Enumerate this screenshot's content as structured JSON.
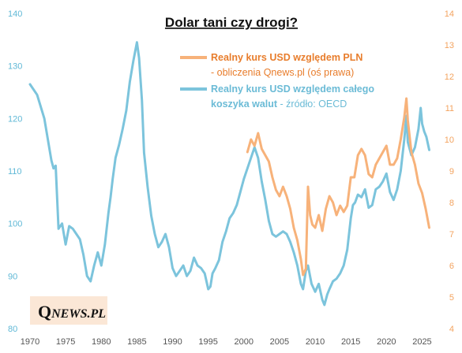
{
  "chart_data": {
    "type": "line",
    "title": "Dolar tani czy drogi?",
    "xlabel": "",
    "ylabel": "",
    "xlim": [
      1970,
      2026.5
    ],
    "ylim_left": [
      80,
      140
    ],
    "ylim_right": [
      4,
      14
    ],
    "x_ticks": [
      1970,
      1975,
      1980,
      1985,
      1990,
      1995,
      2000,
      2005,
      2010,
      2015,
      2020,
      2025
    ],
    "y_left_ticks": [
      80,
      90,
      100,
      110,
      120,
      130,
      140
    ],
    "y_right_ticks": [
      4,
      5,
      6,
      7,
      8,
      9,
      10,
      11,
      12,
      13,
      14
    ],
    "grid": false,
    "legend_position": "top-right",
    "legend": [
      {
        "line1": "Realny kurs USD względem PLN",
        "line2_main": "- obliczenia Qnews.pl (oś prawa)",
        "line2_tail": "",
        "color": "#f7b27a"
      },
      {
        "line1": "Realny kurs USD względem całego",
        "line2_main": "koszyka walut",
        "line2_tail": " - źródło: OECD",
        "color": "#7cc4dc"
      }
    ],
    "series": [
      {
        "name": "Realny kurs USD względem całego koszyka walut",
        "axis": "left",
        "color": "#7cc4dc",
        "x": [
          1970.0,
          1971.0,
          1972.0,
          1972.5,
          1973.0,
          1973.3,
          1973.6,
          1974.0,
          1974.5,
          1975.0,
          1975.5,
          1976.0,
          1976.5,
          1977.0,
          1977.5,
          1978.0,
          1978.5,
          1979.0,
          1979.5,
          1980.0,
          1980.5,
          1981.0,
          1981.3,
          1981.6,
          1982.0,
          1982.5,
          1983.0,
          1983.5,
          1984.0,
          1984.5,
          1985.0,
          1985.3,
          1985.7,
          1986.0,
          1986.5,
          1987.0,
          1987.5,
          1988.0,
          1988.5,
          1989.0,
          1989.5,
          1990.0,
          1990.5,
          1991.0,
          1991.5,
          1992.0,
          1992.5,
          1993.0,
          1993.5,
          1994.0,
          1994.5,
          1995.0,
          1995.3,
          1995.6,
          1996.0,
          1996.5,
          1997.0,
          1997.5,
          1998.0,
          1998.5,
          1999.0,
          1999.5,
          2000.0,
          2000.5,
          2001.0,
          2001.5,
          2002.0,
          2002.5,
          2003.0,
          2003.5,
          2004.0,
          2004.5,
          2005.0,
          2005.5,
          2006.0,
          2006.5,
          2007.0,
          2007.5,
          2008.0,
          2008.3,
          2008.7,
          2009.0,
          2009.5,
          2010.0,
          2010.5,
          2011.0,
          2011.3,
          2011.7,
          2012.0,
          2012.5,
          2013.0,
          2013.5,
          2014.0,
          2014.5,
          2015.0,
          2015.3,
          2015.6,
          2016.0,
          2016.5,
          2017.0,
          2017.5,
          2018.0,
          2018.5,
          2019.0,
          2019.5,
          2020.0,
          2020.5,
          2021.0,
          2021.5,
          2022.0,
          2022.5,
          2022.8,
          2023.0,
          2023.5,
          2024.0,
          2024.5,
          2024.8,
          2025.0,
          2025.3,
          2025.6,
          2026.0
        ],
        "values": [
          126.5,
          124.5,
          120.0,
          116.0,
          112.0,
          110.5,
          111.0,
          99.0,
          100.0,
          96.0,
          99.5,
          99.0,
          98.0,
          97.0,
          94.0,
          90.0,
          89.0,
          92.0,
          94.5,
          92.0,
          96.0,
          102.0,
          105.0,
          108.5,
          112.5,
          115.0,
          118.0,
          121.5,
          127.0,
          131.0,
          134.5,
          131.5,
          123.5,
          113.5,
          107.0,
          101.5,
          98.0,
          95.5,
          96.5,
          98.0,
          95.5,
          91.5,
          90.0,
          91.0,
          92.0,
          90.0,
          91.0,
          93.5,
          92.0,
          91.5,
          90.5,
          87.5,
          88.0,
          90.5,
          91.5,
          93.0,
          96.5,
          98.5,
          101.0,
          102.0,
          103.5,
          106.0,
          108.5,
          110.5,
          112.5,
          114.5,
          112.5,
          108.0,
          104.5,
          100.5,
          98.0,
          97.5,
          98.0,
          98.5,
          98.0,
          96.5,
          94.5,
          92.0,
          88.5,
          87.5,
          91.0,
          92.0,
          88.5,
          87.0,
          88.5,
          85.5,
          84.5,
          86.5,
          87.5,
          89.0,
          89.5,
          90.5,
          92.0,
          95.0,
          101.0,
          103.5,
          104.0,
          105.5,
          105.0,
          106.5,
          103.0,
          103.5,
          106.5,
          107.0,
          108.0,
          109.5,
          106.0,
          104.5,
          106.5,
          110.0,
          116.0,
          120.5,
          115.5,
          113.0,
          114.5,
          118.0,
          122.0,
          119.0,
          117.5,
          116.5,
          114.0
        ]
      },
      {
        "name": "Realny kurs USD względem PLN",
        "axis": "right",
        "color": "#f7b27a",
        "x": [
          2000.5,
          2001.0,
          2001.5,
          2002.0,
          2002.5,
          2003.0,
          2003.5,
          2004.0,
          2004.5,
          2005.0,
          2005.5,
          2006.0,
          2006.5,
          2007.0,
          2007.5,
          2008.0,
          2008.3,
          2008.7,
          2009.0,
          2009.3,
          2009.6,
          2010.0,
          2010.5,
          2011.0,
          2011.5,
          2012.0,
          2012.5,
          2013.0,
          2013.5,
          2014.0,
          2014.5,
          2015.0,
          2015.5,
          2016.0,
          2016.5,
          2017.0,
          2017.5,
          2018.0,
          2018.5,
          2019.0,
          2019.5,
          2020.0,
          2020.5,
          2021.0,
          2021.5,
          2022.0,
          2022.5,
          2022.8,
          2023.0,
          2023.5,
          2024.0,
          2024.5,
          2025.0,
          2025.5,
          2026.0
        ],
        "values": [
          9.6,
          10.0,
          9.8,
          10.2,
          9.7,
          9.5,
          9.3,
          8.8,
          8.4,
          8.2,
          8.5,
          8.2,
          7.8,
          7.2,
          6.8,
          6.2,
          5.7,
          5.9,
          8.5,
          7.6,
          7.3,
          7.2,
          7.6,
          7.1,
          7.8,
          8.2,
          8.0,
          7.6,
          7.9,
          7.7,
          7.9,
          8.8,
          8.8,
          9.5,
          9.7,
          9.5,
          8.9,
          8.8,
          9.2,
          9.4,
          9.6,
          9.8,
          9.2,
          9.2,
          9.4,
          10.0,
          10.7,
          11.3,
          10.6,
          9.6,
          9.2,
          8.6,
          8.3,
          7.8,
          7.2
        ]
      }
    ]
  },
  "logo": {
    "q": "Q",
    "rest": "NEWS.PL"
  }
}
